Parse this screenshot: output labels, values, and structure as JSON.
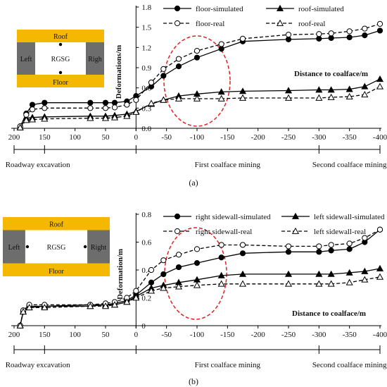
{
  "colors": {
    "line": "#000000",
    "highlight_ellipse": "#e02020",
    "schematic_band": "#f5b800",
    "schematic_pillar": "#6d6d6d",
    "schematic_opening": "#ffffff"
  },
  "chart_data": [
    {
      "panel_label": "(a)",
      "type": "line",
      "ylabel": "Deformations/m",
      "xlabel": "Distance to coalface/m",
      "xlim": [
        200,
        -400
      ],
      "ylim": [
        0,
        1.8
      ],
      "x_ticks": [
        200,
        150,
        100,
        50,
        0,
        -50,
        -100,
        -150,
        -200,
        -250,
        -300,
        -350,
        -400
      ],
      "y_ticks": [
        "0.0",
        "0.3",
        "0.6",
        "0.9",
        "1.2",
        "1.5",
        "1.8"
      ],
      "stages": [
        "Roadway excavation",
        "First coalface mining",
        "Second coalface mining"
      ],
      "schematic": {
        "top": "Roof",
        "bottom": "Floor",
        "left": "Left",
        "center": "RGSG",
        "right": "Righ"
      },
      "series": [
        {
          "name": "floor-simulated",
          "dash": "solid",
          "marker": "filled-circle",
          "x": [
            190,
            180,
            170,
            150,
            75,
            50,
            35,
            15,
            0,
            -25,
            -45,
            -70,
            -100,
            -140,
            -175,
            -250,
            -300,
            -320,
            -350,
            -375,
            -400
          ],
          "y": [
            0.02,
            0.22,
            0.35,
            0.38,
            0.38,
            0.38,
            0.38,
            0.4,
            0.48,
            0.62,
            0.78,
            0.92,
            1.05,
            1.18,
            1.29,
            1.32,
            1.33,
            1.34,
            1.35,
            1.38,
            1.45
          ]
        },
        {
          "name": "roof-simulated",
          "dash": "solid",
          "marker": "filled-triangle",
          "x": [
            190,
            180,
            170,
            150,
            75,
            50,
            35,
            15,
            0,
            -25,
            -45,
            -70,
            -100,
            -140,
            -175,
            -250,
            -300,
            -320,
            -350,
            -375,
            -400
          ],
          "y": [
            0.01,
            0.15,
            0.16,
            0.17,
            0.18,
            0.18,
            0.19,
            0.21,
            0.25,
            0.36,
            0.42,
            0.48,
            0.51,
            0.54,
            0.55,
            0.56,
            0.57,
            0.57,
            0.58,
            0.62,
            0.73
          ]
        },
        {
          "name": "floor-real",
          "dash": "dashed",
          "marker": "open-circle",
          "x": [
            190,
            180,
            170,
            150,
            75,
            50,
            35,
            15,
            0,
            -25,
            -45,
            -70,
            -100,
            -140,
            -175,
            -250,
            -300,
            -320,
            -350,
            -375,
            -400
          ],
          "y": [
            0.03,
            0.2,
            0.28,
            0.3,
            0.3,
            0.3,
            0.31,
            0.35,
            0.42,
            0.68,
            0.88,
            1.03,
            1.15,
            1.25,
            1.33,
            1.39,
            1.4,
            1.41,
            1.44,
            1.48,
            1.55
          ]
        },
        {
          "name": "roof-real",
          "dash": "dashed",
          "marker": "open-triangle",
          "x": [
            190,
            180,
            170,
            150,
            75,
            50,
            35,
            15,
            0,
            -25,
            -45,
            -70,
            -100,
            -140,
            -175,
            -250,
            -300,
            -320,
            -350,
            -375,
            -400
          ],
          "y": [
            0.01,
            0.12,
            0.13,
            0.14,
            0.15,
            0.15,
            0.16,
            0.18,
            0.24,
            0.37,
            0.42,
            0.44,
            0.44,
            0.44,
            0.45,
            0.45,
            0.45,
            0.46,
            0.47,
            0.5,
            0.62
          ]
        }
      ]
    },
    {
      "panel_label": "(b)",
      "type": "line",
      "ylabel": "Deformation/m",
      "xlabel": "Distance to coalface/m",
      "xlim": [
        200,
        -400
      ],
      "ylim": [
        0,
        0.8
      ],
      "x_ticks": [
        200,
        150,
        100,
        50,
        0,
        -50,
        -100,
        -150,
        -200,
        -250,
        -300,
        -350,
        -400
      ],
      "y_ticks": [
        "0",
        "0.2",
        "0.4",
        "0.6",
        "0.8"
      ],
      "stages": [
        "Roadway excavation",
        "First coalface mining",
        "Second coalface mining"
      ],
      "schematic": {
        "top": "Roof",
        "bottom": "Floor",
        "left": "Left",
        "center": "RGSG",
        "right": "Right"
      },
      "series": [
        {
          "name": "right sidewall-simulated",
          "dash": "solid",
          "marker": "filled-circle",
          "x": [
            190,
            185,
            175,
            150,
            75,
            50,
            35,
            15,
            0,
            -25,
            -45,
            -70,
            -100,
            -140,
            -175,
            -250,
            -300,
            -320,
            -350,
            -375,
            -400
          ],
          "y": [
            0.0,
            0.1,
            0.14,
            0.14,
            0.15,
            0.15,
            0.16,
            0.18,
            0.22,
            0.31,
            0.37,
            0.42,
            0.45,
            0.49,
            0.52,
            0.53,
            0.53,
            0.54,
            0.55,
            0.6,
            0.69
          ]
        },
        {
          "name": "left sidewall-simulated",
          "dash": "solid",
          "marker": "filled-triangle",
          "x": [
            190,
            185,
            175,
            150,
            75,
            50,
            35,
            15,
            0,
            -25,
            -45,
            -70,
            -100,
            -140,
            -175,
            -250,
            -300,
            -320,
            -350,
            -375,
            -400
          ],
          "y": [
            0.0,
            0.1,
            0.13,
            0.14,
            0.14,
            0.15,
            0.15,
            0.17,
            0.21,
            0.27,
            0.29,
            0.31,
            0.33,
            0.36,
            0.37,
            0.37,
            0.37,
            0.37,
            0.38,
            0.39,
            0.41
          ]
        },
        {
          "name": "right sidewall-real",
          "dash": "dashed",
          "marker": "open-circle",
          "x": [
            190,
            185,
            175,
            150,
            75,
            50,
            35,
            15,
            0,
            -25,
            -45,
            -70,
            -100,
            -140,
            -175,
            -250,
            -300,
            -320,
            -350,
            -375,
            -400
          ],
          "y": [
            0.0,
            0.11,
            0.15,
            0.15,
            0.15,
            0.16,
            0.17,
            0.2,
            0.25,
            0.4,
            0.47,
            0.51,
            0.55,
            0.58,
            0.58,
            0.57,
            0.57,
            0.58,
            0.59,
            0.63,
            0.69
          ]
        },
        {
          "name": "left sidewall-real",
          "dash": "dashed",
          "marker": "open-triangle",
          "x": [
            190,
            185,
            175,
            150,
            75,
            50,
            35,
            15,
            0,
            -25,
            -45,
            -70,
            -100,
            -140,
            -175,
            -250,
            -300,
            -320,
            -350,
            -375,
            -400
          ],
          "y": [
            0.0,
            0.1,
            0.13,
            0.13,
            0.14,
            0.14,
            0.15,
            0.17,
            0.2,
            0.25,
            0.27,
            0.28,
            0.29,
            0.3,
            0.3,
            0.3,
            0.3,
            0.3,
            0.31,
            0.33,
            0.35
          ]
        }
      ]
    }
  ]
}
